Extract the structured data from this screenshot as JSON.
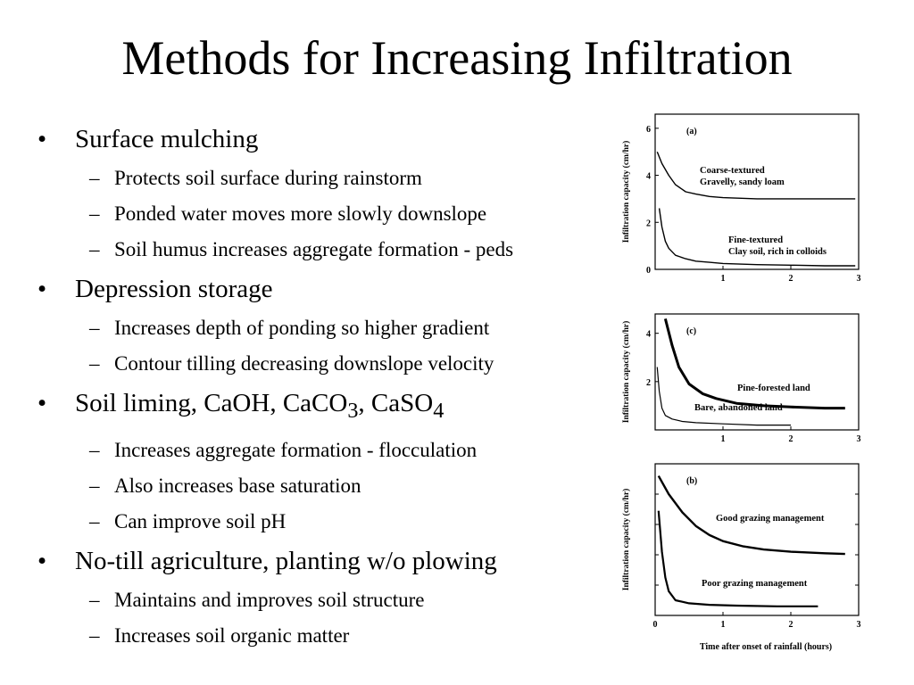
{
  "title": "Methods for Increasing Infiltration",
  "bullets": [
    {
      "text": "Surface mulching",
      "sub": [
        "Protects soil surface during rainstorm",
        "Ponded water moves more slowly downslope",
        "Soil humus increases aggregate formation - peds"
      ]
    },
    {
      "text": "Depression storage",
      "sub": [
        "Increases depth of ponding so higher gradient",
        "Contour tilling decreasing downslope velocity"
      ]
    },
    {
      "text_parts": [
        "Soil liming, CaOH, CaCO",
        "3",
        ", CaSO",
        "4"
      ],
      "sub": [
        "Increases aggregate formation - flocculation",
        "Also increases base saturation",
        "Can improve soil pH"
      ]
    },
    {
      "text": "No-till agriculture, planting w/o plowing",
      "sub": [
        "Maintains and improves soil structure",
        "Increases soil organic matter"
      ]
    }
  ],
  "chart_data": [
    {
      "type": "line",
      "panel_label": "(a)",
      "ylabel": "Infiltration capacity (cm/hr)",
      "y_ticks": [
        "0",
        "2",
        "4",
        "6"
      ],
      "x_ticks": [
        "1",
        "2",
        "3"
      ],
      "xlim": [
        0,
        3
      ],
      "ylim": [
        0,
        6.6
      ],
      "series": [
        {
          "labels": [
            "Coarse-textured",
            "Gravelly, sandy loam"
          ],
          "x": [
            0.03,
            0.1,
            0.2,
            0.3,
            0.45,
            0.6,
            0.8,
            1.0,
            1.5,
            2.0,
            2.5,
            2.95
          ],
          "y": [
            5.0,
            4.5,
            4.0,
            3.6,
            3.3,
            3.2,
            3.1,
            3.05,
            3.0,
            3.0,
            3.0,
            3.0
          ]
        },
        {
          "labels": [
            "Fine-textured",
            "Clay soil, rich in colloids"
          ],
          "x": [
            0.06,
            0.1,
            0.15,
            0.2,
            0.3,
            0.45,
            0.6,
            0.8,
            1.0,
            1.5,
            2.0,
            2.5,
            2.95
          ],
          "y": [
            2.6,
            1.8,
            1.2,
            0.9,
            0.6,
            0.45,
            0.35,
            0.3,
            0.25,
            0.2,
            0.18,
            0.15,
            0.15
          ]
        }
      ]
    },
    {
      "type": "line",
      "panel_label": "(c)",
      "ylabel": "Infiltration capacity (cm/hr)",
      "y_ticks": [
        "2",
        "4"
      ],
      "x_ticks": [
        "1",
        "2",
        "3"
      ],
      "xlim": [
        0,
        3
      ],
      "ylim": [
        0,
        4.8
      ],
      "series": [
        {
          "labels": [
            "Pine-forested land"
          ],
          "x": [
            0.15,
            0.25,
            0.35,
            0.5,
            0.7,
            0.9,
            1.2,
            1.6,
            2.0,
            2.5,
            2.8
          ],
          "y": [
            4.6,
            3.5,
            2.6,
            1.9,
            1.5,
            1.3,
            1.1,
            1.0,
            0.95,
            0.9,
            0.9
          ]
        },
        {
          "labels": [
            "Bare, abandoned land"
          ],
          "x": [
            0.03,
            0.06,
            0.1,
            0.15,
            0.25,
            0.4,
            0.6,
            1.0,
            1.5,
            2.0
          ],
          "y": [
            2.6,
            1.6,
            0.9,
            0.6,
            0.45,
            0.35,
            0.3,
            0.25,
            0.2,
            0.2
          ]
        }
      ]
    },
    {
      "type": "line",
      "panel_label": "(b)",
      "ylabel": "Infiltration capacity (cm/hr)",
      "xlabel": "Time after onset of rainfall (hours)",
      "x_ticks": [
        "0",
        "1",
        "2",
        "3"
      ],
      "xlim": [
        0,
        3
      ],
      "ylim": [
        0,
        10
      ],
      "series": [
        {
          "labels": [
            "Good grazing management"
          ],
          "x": [
            0.05,
            0.2,
            0.4,
            0.6,
            0.8,
            1.0,
            1.3,
            1.6,
            2.0,
            2.5,
            2.8
          ],
          "y": [
            9.2,
            8.0,
            6.8,
            5.9,
            5.3,
            4.9,
            4.55,
            4.35,
            4.2,
            4.1,
            4.05
          ]
        },
        {
          "labels": [
            "Poor grazing management"
          ],
          "x": [
            0.05,
            0.1,
            0.15,
            0.2,
            0.3,
            0.5,
            0.8,
            1.2,
            1.8,
            2.4
          ],
          "y": [
            6.9,
            4.2,
            2.5,
            1.6,
            1.0,
            0.8,
            0.7,
            0.65,
            0.6,
            0.6
          ]
        }
      ]
    }
  ]
}
